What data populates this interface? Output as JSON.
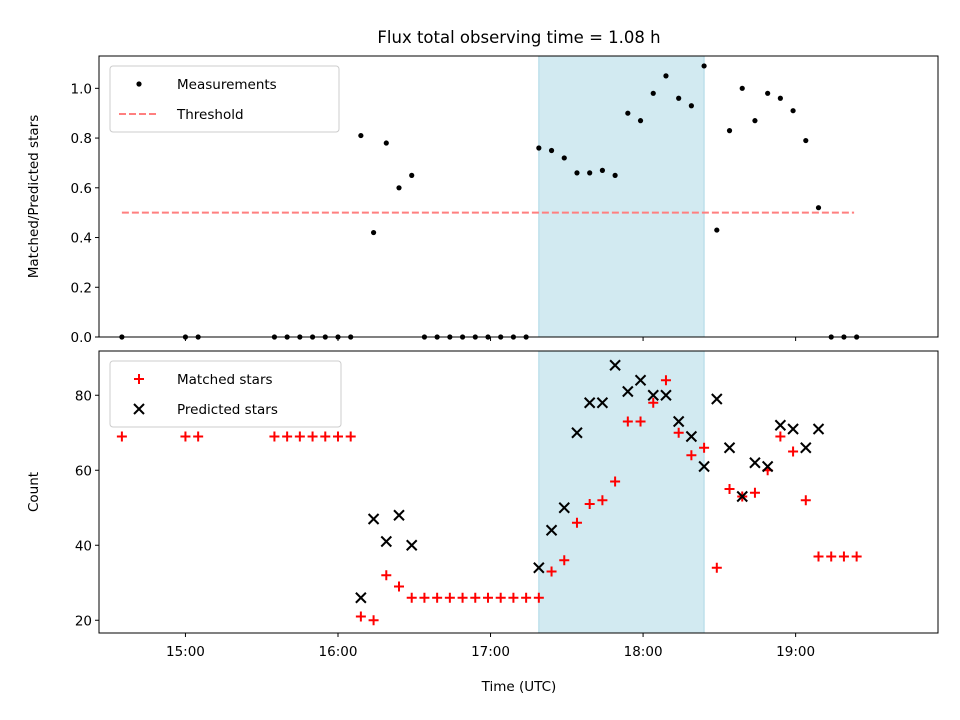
{
  "title": "Flux total observing time = 1.08 h",
  "xlabel": "Time (UTC)",
  "colors": {
    "span": "#add8e6",
    "threshold": "#ff7f7f",
    "matched": "#ff0000",
    "predicted": "#000000",
    "measurements": "#000000"
  },
  "x_ticks": [
    "15:00",
    "16:00",
    "17:00",
    "18:00",
    "19:00"
  ],
  "chart_data": [
    {
      "type": "scatter",
      "ylabel": "Matched/Predicted stars",
      "xlim": [
        "14:26",
        "19:56"
      ],
      "ylim": [
        0,
        1.13
      ],
      "y_ticks": [
        "0.0",
        "0.2",
        "0.4",
        "0.6",
        "0.8",
        "1.0"
      ],
      "shaded_span": [
        "17:19",
        "18:24"
      ],
      "legend": {
        "position": "top-left",
        "entries": [
          "Measurements",
          "Threshold"
        ]
      },
      "threshold": {
        "name": "Threshold",
        "y": 0.5,
        "x": [
          "14:35",
          "19:23"
        ],
        "style": "dashed"
      },
      "series": [
        {
          "name": "Measurements",
          "marker": "dot",
          "points": [
            [
              "14:35",
              0
            ],
            [
              "15:00",
              0
            ],
            [
              "15:05",
              0
            ],
            [
              "15:35",
              0
            ],
            [
              "15:40",
              0
            ],
            [
              "15:45",
              0
            ],
            [
              "15:50",
              0
            ],
            [
              "15:55",
              0
            ],
            [
              "16:00",
              0
            ],
            [
              "16:05",
              0
            ],
            [
              "16:09",
              0.81
            ],
            [
              "16:14",
              0.42
            ],
            [
              "16:19",
              0.78
            ],
            [
              "16:24",
              0.6
            ],
            [
              "16:29",
              0.65
            ],
            [
              "16:34",
              0
            ],
            [
              "16:39",
              0
            ],
            [
              "16:44",
              0
            ],
            [
              "16:49",
              0
            ],
            [
              "16:54",
              0
            ],
            [
              "16:59",
              0
            ],
            [
              "17:04",
              0
            ],
            [
              "17:09",
              0
            ],
            [
              "17:14",
              0
            ],
            [
              "17:19",
              0.76
            ],
            [
              "17:24",
              0.75
            ],
            [
              "17:29",
              0.72
            ],
            [
              "17:34",
              0.66
            ],
            [
              "17:39",
              0.66
            ],
            [
              "17:44",
              0.67
            ],
            [
              "17:49",
              0.65
            ],
            [
              "17:54",
              0.9
            ],
            [
              "17:59",
              0.87
            ],
            [
              "18:04",
              0.98
            ],
            [
              "18:09",
              1.05
            ],
            [
              "18:14",
              0.96
            ],
            [
              "18:19",
              0.93
            ],
            [
              "18:24",
              1.09
            ],
            [
              "18:29",
              0.43
            ],
            [
              "18:34",
              0.83
            ],
            [
              "18:39",
              1.0
            ],
            [
              "18:44",
              0.87
            ],
            [
              "18:49",
              0.98
            ],
            [
              "18:54",
              0.96
            ],
            [
              "18:59",
              0.91
            ],
            [
              "19:04",
              0.79
            ],
            [
              "19:09",
              0.52
            ],
            [
              "19:14",
              0
            ],
            [
              "19:19",
              0
            ],
            [
              "19:24",
              0
            ]
          ]
        }
      ]
    },
    {
      "type": "scatter",
      "ylabel": "Count",
      "xlim": [
        "14:26",
        "19:56"
      ],
      "ylim": [
        16.6,
        91.8
      ],
      "y_ticks": [
        "20",
        "40",
        "60",
        "80"
      ],
      "shaded_span": [
        "17:19",
        "18:24"
      ],
      "legend": {
        "position": "top-left",
        "entries": [
          "Matched stars",
          "Predicted stars"
        ]
      },
      "series": [
        {
          "name": "Matched stars",
          "marker": "plus",
          "points": [
            [
              "14:35",
              69
            ],
            [
              "15:00",
              69
            ],
            [
              "15:05",
              69
            ],
            [
              "15:35",
              69
            ],
            [
              "15:40",
              69
            ],
            [
              "15:45",
              69
            ],
            [
              "15:50",
              69
            ],
            [
              "15:55",
              69
            ],
            [
              "16:00",
              69
            ],
            [
              "16:05",
              69
            ],
            [
              "16:09",
              21
            ],
            [
              "16:14",
              20
            ],
            [
              "16:19",
              32
            ],
            [
              "16:24",
              29
            ],
            [
              "16:29",
              26
            ],
            [
              "16:34",
              26
            ],
            [
              "16:39",
              26
            ],
            [
              "16:44",
              26
            ],
            [
              "16:49",
              26
            ],
            [
              "16:54",
              26
            ],
            [
              "16:59",
              26
            ],
            [
              "17:04",
              26
            ],
            [
              "17:09",
              26
            ],
            [
              "17:14",
              26
            ],
            [
              "17:19",
              26
            ],
            [
              "17:24",
              33
            ],
            [
              "17:29",
              36
            ],
            [
              "17:34",
              46
            ],
            [
              "17:39",
              51
            ],
            [
              "17:44",
              52
            ],
            [
              "17:49",
              57
            ],
            [
              "17:54",
              73
            ],
            [
              "17:59",
              73
            ],
            [
              "18:04",
              78
            ],
            [
              "18:09",
              84
            ],
            [
              "18:14",
              70
            ],
            [
              "18:19",
              64
            ],
            [
              "18:24",
              66
            ],
            [
              "18:29",
              34
            ],
            [
              "18:34",
              55
            ],
            [
              "18:39",
              53
            ],
            [
              "18:44",
              54
            ],
            [
              "18:49",
              60
            ],
            [
              "18:54",
              69
            ],
            [
              "18:59",
              65
            ],
            [
              "19:04",
              52
            ],
            [
              "19:09",
              37
            ],
            [
              "19:14",
              37
            ],
            [
              "19:19",
              37
            ],
            [
              "19:24",
              37
            ]
          ]
        },
        {
          "name": "Predicted stars",
          "marker": "x",
          "points": [
            [
              "16:09",
              26
            ],
            [
              "16:14",
              47
            ],
            [
              "16:19",
              41
            ],
            [
              "16:24",
              48
            ],
            [
              "16:29",
              40
            ],
            [
              "17:19",
              34
            ],
            [
              "17:24",
              44
            ],
            [
              "17:29",
              50
            ],
            [
              "17:34",
              70
            ],
            [
              "17:39",
              78
            ],
            [
              "17:44",
              78
            ],
            [
              "17:49",
              88
            ],
            [
              "17:54",
              81
            ],
            [
              "17:59",
              84
            ],
            [
              "18:04",
              80
            ],
            [
              "18:09",
              80
            ],
            [
              "18:14",
              73
            ],
            [
              "18:19",
              69
            ],
            [
              "18:24",
              61
            ],
            [
              "18:29",
              79
            ],
            [
              "18:34",
              66
            ],
            [
              "18:39",
              53
            ],
            [
              "18:44",
              62
            ],
            [
              "18:49",
              61
            ],
            [
              "18:54",
              72
            ],
            [
              "18:59",
              71
            ],
            [
              "19:04",
              66
            ],
            [
              "19:09",
              71
            ]
          ]
        }
      ]
    }
  ]
}
